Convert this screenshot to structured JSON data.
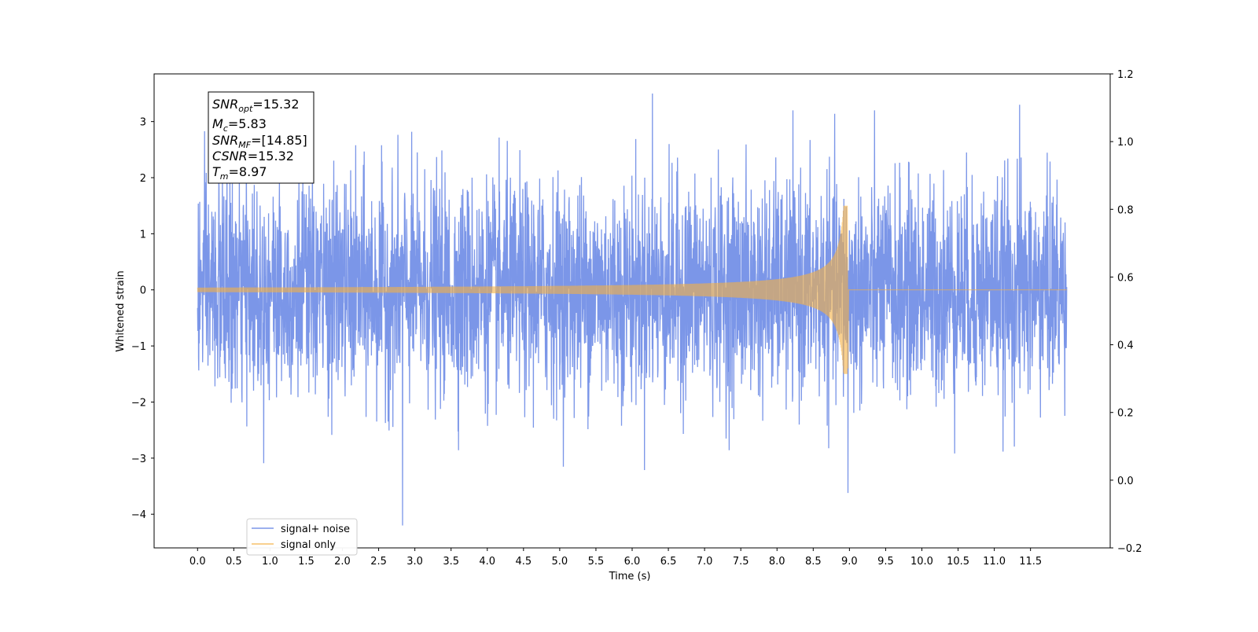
{
  "chart_data": {
    "type": "line",
    "xlabel": "Time (s)",
    "ylabel": "Whitened strain",
    "xlim": [
      -0.6,
      12.6
    ],
    "ylim": [
      -4.6,
      3.85
    ],
    "y2lim": [
      -0.2,
      1.2
    ],
    "grid": false,
    "legend_position": "lower-left",
    "x_ticks": [
      0.0,
      0.5,
      1.0,
      1.5,
      2.0,
      2.5,
      3.0,
      3.5,
      4.0,
      4.5,
      5.0,
      5.5,
      6.0,
      6.5,
      7.0,
      7.5,
      8.0,
      8.5,
      9.0,
      9.5,
      10.0,
      10.5,
      11.0,
      11.5
    ],
    "x_tick_labels": [
      "0.0",
      "0.5",
      "1.0",
      "1.5",
      "2.0",
      "2.5",
      "3.0",
      "3.5",
      "4.0",
      "4.5",
      "5.0",
      "5.5",
      "6.0",
      "6.5",
      "7.0",
      "7.5",
      "8.0",
      "8.5",
      "9.0",
      "9.5",
      "10.0",
      "10.5",
      "11.0",
      "11.5"
    ],
    "y_ticks": [
      -4,
      -3,
      -2,
      -1,
      0,
      1,
      2,
      3
    ],
    "y_tick_labels": [
      "−4",
      "−3",
      "−2",
      "−1",
      "0",
      "1",
      "2",
      "3"
    ],
    "y2_ticks": [
      -0.2,
      0.0,
      0.2,
      0.4,
      0.6,
      0.8,
      1.0,
      1.2
    ],
    "y2_tick_labels": [
      "−0.2",
      "0.0",
      "0.2",
      "0.4",
      "0.6",
      "0.8",
      "1.0",
      "1.2"
    ],
    "annotation": {
      "lines": [
        {
          "sym": "SNR",
          "sub": "opt",
          "value": "=15.32"
        },
        {
          "sym": "M",
          "sub": "c",
          "value": "=5.83"
        },
        {
          "sym": "SNR",
          "sub": "MF",
          "value": "=[14.85]"
        },
        {
          "sym": "CSNR",
          "sub": "",
          "value": "=15.32"
        },
        {
          "sym": "T",
          "sub": "m",
          "value": "=8.97"
        }
      ]
    },
    "series": [
      {
        "name": "signal+ noise",
        "color": "#7b96e8",
        "t_start": 0.0,
        "t_end": 12.0,
        "noise_sigma": 1.0,
        "notable_values": [
          {
            "t": 2.83,
            "y": -4.2
          },
          {
            "t": 6.28,
            "y": 3.5
          },
          {
            "t": 8.98,
            "y": -3.62
          },
          {
            "t": 11.35,
            "y": 3.3
          }
        ]
      },
      {
        "name": "signal only",
        "color": "#f5b042",
        "t_start": 0.0,
        "t_merger": 8.97,
        "t_end": 12.0,
        "amplitude_start": 0.04,
        "amplitude_peak": 1.5,
        "amplitude_end": 0.0
      }
    ]
  }
}
